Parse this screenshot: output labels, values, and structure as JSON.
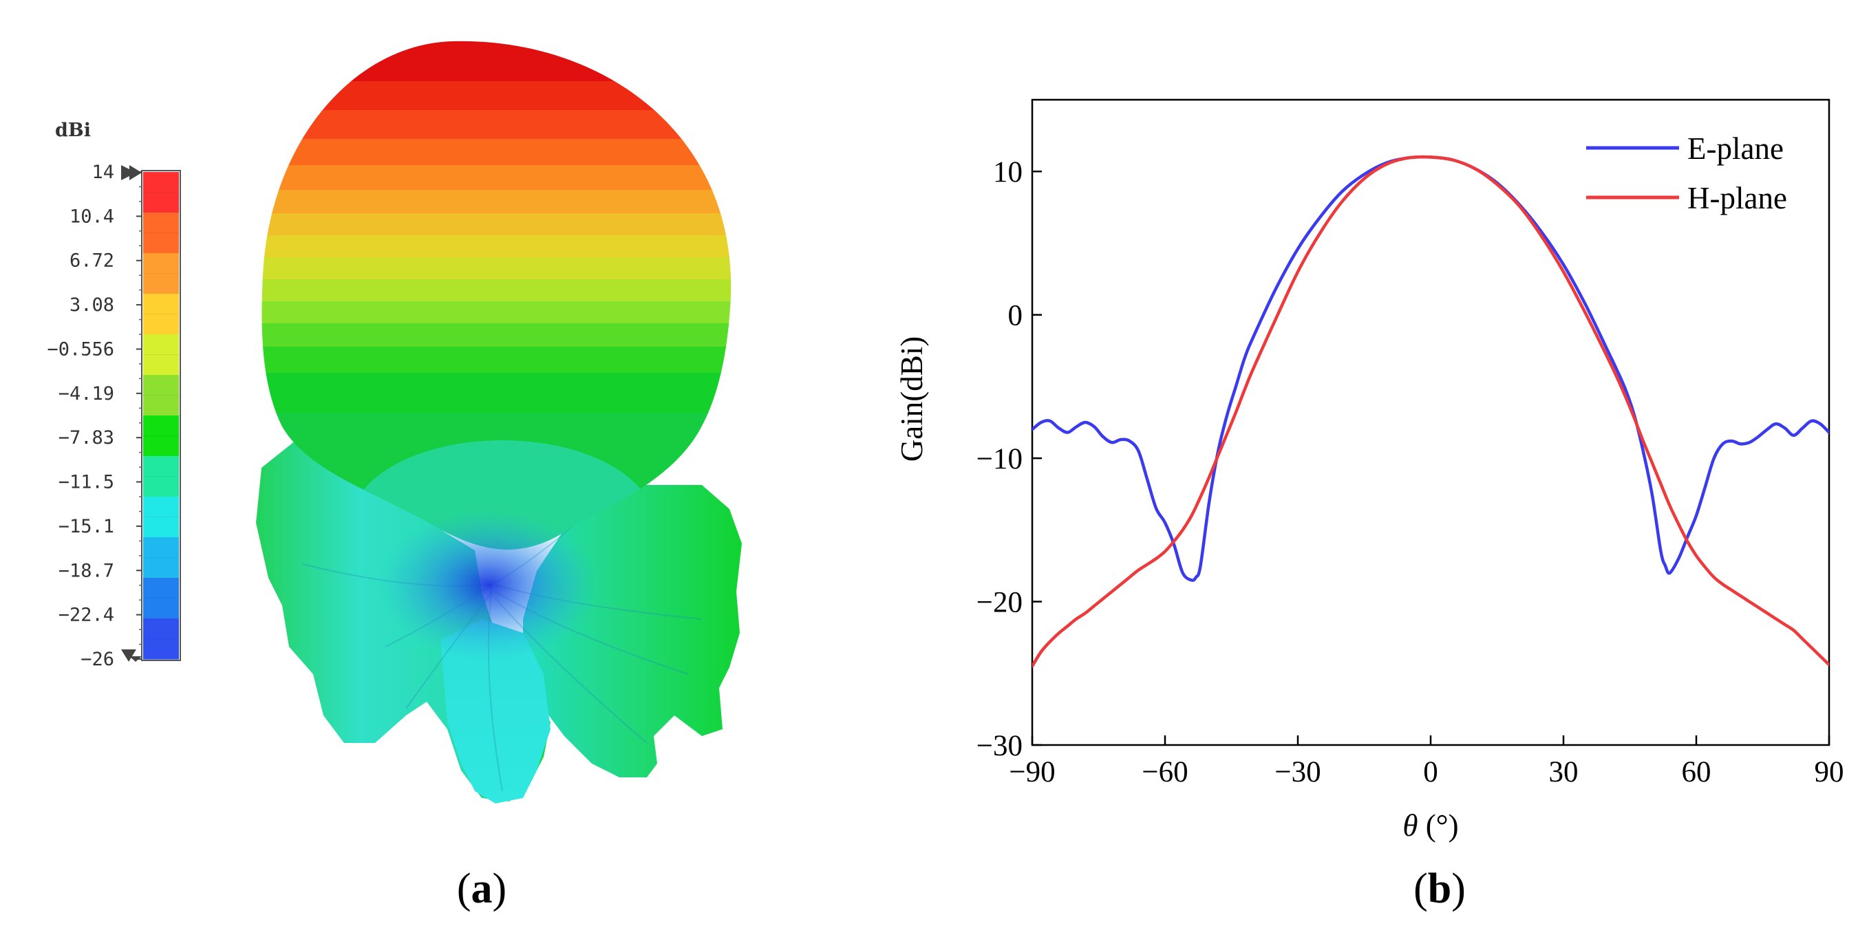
{
  "panel_a": {
    "label_open": "(",
    "label_letter": "a",
    "label_close": ")",
    "colorbar": {
      "unit": "dBi",
      "ticks": [
        "14",
        "10.4",
        "6.72",
        "3.08",
        "−0.556",
        "−4.19",
        "−7.83",
        "−11.5",
        "−15.1",
        "−18.7",
        "−22.4",
        "−26"
      ],
      "max": 14,
      "min": -26,
      "colors": [
        "#ff3030",
        "#ff6a28",
        "#ff9e30",
        "#ffd030",
        "#d6f030",
        "#8ee030",
        "#10e010",
        "#20e8a0",
        "#20e8e8",
        "#20b8f0",
        "#2080f0",
        "#3050f0"
      ]
    }
  },
  "panel_b": {
    "label_open": "(",
    "label_letter": "b",
    "label_close": ")"
  },
  "chart_data": {
    "type": "line",
    "title": "",
    "xlabel_symbol": "θ",
    "xlabel_unit": " (°)",
    "ylabel": "Gain(dBi)",
    "xlim": [
      -90,
      90
    ],
    "ylim": [
      -30,
      15
    ],
    "xticks": [
      -90,
      -60,
      -30,
      0,
      30,
      60,
      90
    ],
    "yticks": [
      -30,
      -20,
      -10,
      0,
      10
    ],
    "xtick_labels": [
      "−90",
      "−60",
      "−30",
      "0",
      "30",
      "60",
      "90"
    ],
    "ytick_labels": [
      "−30",
      "−20",
      "−10",
      "0",
      "10"
    ],
    "legend_position": "top-right",
    "series": [
      {
        "name": "E-plane",
        "color": "#3a3aee",
        "x": [
          -90,
          -88,
          -86,
          -84,
          -82,
          -80,
          -78,
          -76,
          -74,
          -72,
          -70,
          -68,
          -66,
          -64,
          -62,
          -60,
          -58,
          -56,
          -54,
          -53,
          -52,
          -50,
          -48,
          -46,
          -44,
          -42,
          -40,
          -35,
          -30,
          -25,
          -20,
          -15,
          -10,
          -5,
          0,
          5,
          10,
          15,
          20,
          25,
          30,
          35,
          40,
          42,
          44,
          46,
          48,
          50,
          52,
          53,
          54,
          56,
          58,
          60,
          62,
          64,
          66,
          68,
          70,
          72,
          74,
          76,
          78,
          80,
          82,
          84,
          86,
          88,
          90
        ],
        "y": [
          -8.0,
          -7.5,
          -7.4,
          -7.9,
          -8.2,
          -7.8,
          -7.5,
          -7.8,
          -8.5,
          -8.9,
          -8.7,
          -8.8,
          -9.5,
          -11.5,
          -13.5,
          -14.5,
          -16.0,
          -18.0,
          -18.5,
          -18.3,
          -17.5,
          -13.0,
          -9.5,
          -7.0,
          -5.0,
          -3.0,
          -1.5,
          1.8,
          4.6,
          6.8,
          8.6,
          9.8,
          10.6,
          10.95,
          11.0,
          10.8,
          10.2,
          9.2,
          7.7,
          5.8,
          3.5,
          0.7,
          -2.5,
          -3.8,
          -5.2,
          -7.0,
          -9.5,
          -12.5,
          -16.5,
          -17.5,
          -18.0,
          -17.0,
          -15.5,
          -14.0,
          -12.0,
          -10.0,
          -9.0,
          -8.8,
          -9.0,
          -8.9,
          -8.5,
          -8.0,
          -7.6,
          -7.9,
          -8.4,
          -7.9,
          -7.4,
          -7.6,
          -8.2
        ]
      },
      {
        "name": "H-plane",
        "color": "#ee3a3a",
        "x": [
          -90,
          -88,
          -86,
          -84,
          -82,
          -80,
          -78,
          -76,
          -74,
          -72,
          -70,
          -68,
          -66,
          -64,
          -62,
          -60,
          -58,
          -56,
          -54,
          -52,
          -50,
          -48,
          -46,
          -44,
          -42,
          -40,
          -35,
          -30,
          -25,
          -20,
          -15,
          -10,
          -5,
          0,
          5,
          10,
          15,
          20,
          25,
          30,
          35,
          40,
          42,
          44,
          46,
          48,
          50,
          52,
          54,
          56,
          58,
          60,
          62,
          64,
          66,
          68,
          70,
          72,
          74,
          76,
          78,
          80,
          82,
          84,
          86,
          88,
          90
        ],
        "y": [
          -24.5,
          -23.5,
          -22.8,
          -22.2,
          -21.7,
          -21.2,
          -20.8,
          -20.3,
          -19.8,
          -19.3,
          -18.8,
          -18.3,
          -17.8,
          -17.4,
          -17.0,
          -16.5,
          -15.8,
          -15.0,
          -14.0,
          -12.7,
          -11.3,
          -9.8,
          -8.3,
          -6.8,
          -5.2,
          -3.7,
          -0.3,
          3.0,
          5.7,
          7.9,
          9.5,
          10.5,
          10.95,
          11.0,
          10.8,
          10.2,
          9.1,
          7.6,
          5.5,
          3.0,
          0.1,
          -3.0,
          -4.3,
          -5.7,
          -7.2,
          -8.8,
          -10.3,
          -11.8,
          -13.3,
          -14.6,
          -15.8,
          -16.8,
          -17.6,
          -18.3,
          -18.8,
          -19.2,
          -19.6,
          -20.0,
          -20.4,
          -20.8,
          -21.2,
          -21.6,
          -22.0,
          -22.6,
          -23.2,
          -23.8,
          -24.4
        ]
      }
    ]
  }
}
